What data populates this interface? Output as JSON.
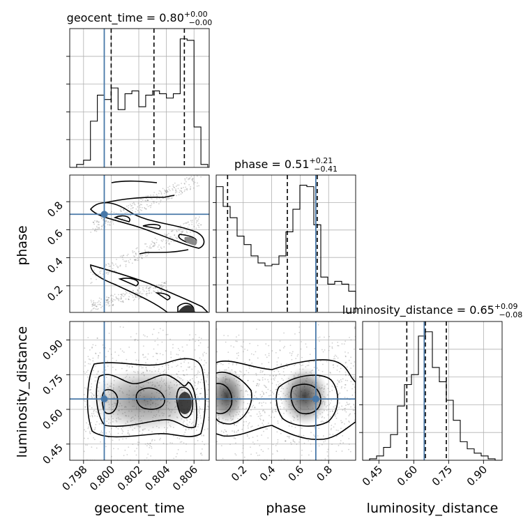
{
  "chart_data": {
    "type": "corner",
    "parameters": [
      "geocent_time",
      "phase",
      "luminosity_distance"
    ],
    "titles": [
      {
        "prefix": "geocent_time = ",
        "median": "0.80",
        "plus": "+0.00",
        "minus": "−0.00"
      },
      {
        "prefix": "phase = ",
        "median": "0.51",
        "plus": "+0.21",
        "minus": "−0.41"
      },
      {
        "prefix": "luminosity_distance = ",
        "median": "0.65",
        "plus": "+0.09",
        "minus": "−0.08"
      }
    ],
    "ranges": {
      "geocent_time": [
        0.797,
        0.8071
      ],
      "phase": [
        0.01,
        0.99
      ],
      "luminosity_distance": [
        0.38,
        0.98
      ]
    },
    "ticks": {
      "geocent_time": [
        "0.798",
        "0.800",
        "0.802",
        "0.804",
        "0.806"
      ],
      "phase": [
        "0.2",
        "0.4",
        "0.6",
        "0.8"
      ],
      "luminosity_distance": [
        "0.45",
        "0.60",
        "0.75",
        "0.90"
      ]
    },
    "truths": {
      "geocent_time": 0.7995,
      "phase": 0.71,
      "luminosity_distance": 0.645
    },
    "quantiles": {
      "geocent_time": [
        0.8,
        0.8031,
        0.8053
      ],
      "phase": [
        0.09,
        0.51,
        0.72
      ],
      "luminosity_distance": [
        0.57,
        0.65,
        0.74
      ]
    },
    "histograms": {
      "geocent_time": {
        "bin_edges": [
          0.797,
          0.7975,
          0.798,
          0.7985,
          0.799,
          0.7995,
          0.8,
          0.8005,
          0.801,
          0.8015,
          0.802,
          0.8025,
          0.803,
          0.8035,
          0.804,
          0.8045,
          0.805,
          0.8055,
          0.806,
          0.8065,
          0.807
        ],
        "counts": [
          0,
          2,
          5,
          32,
          50,
          47,
          55,
          40,
          51,
          53,
          42,
          50,
          53,
          51,
          48,
          51,
          89,
          88,
          28,
          2
        ]
      },
      "phase": {
        "bin_edges": [
          0.01,
          0.059,
          0.108,
          0.157,
          0.206,
          0.255,
          0.304,
          0.353,
          0.402,
          0.451,
          0.5,
          0.549,
          0.598,
          0.647,
          0.696,
          0.745,
          0.794,
          0.843,
          0.892,
          0.941,
          0.99
        ],
        "counts": [
          89,
          75,
          67,
          54,
          48,
          40,
          35,
          33,
          34,
          40,
          57,
          73,
          90,
          89,
          62,
          25,
          20,
          22,
          20,
          15
        ]
      },
      "luminosity_distance": {
        "bin_edges": [
          0.38,
          0.41,
          0.44,
          0.47,
          0.5,
          0.53,
          0.56,
          0.59,
          0.62,
          0.65,
          0.68,
          0.71,
          0.74,
          0.77,
          0.8,
          0.83,
          0.86,
          0.89,
          0.92,
          0.95,
          0.98
        ],
        "counts": [
          0,
          1,
          3,
          9,
          18,
          38,
          53,
          60,
          87,
          90,
          65,
          55,
          42,
          28,
          13,
          8,
          5,
          3,
          1,
          0
        ]
      }
    },
    "grid": true
  }
}
